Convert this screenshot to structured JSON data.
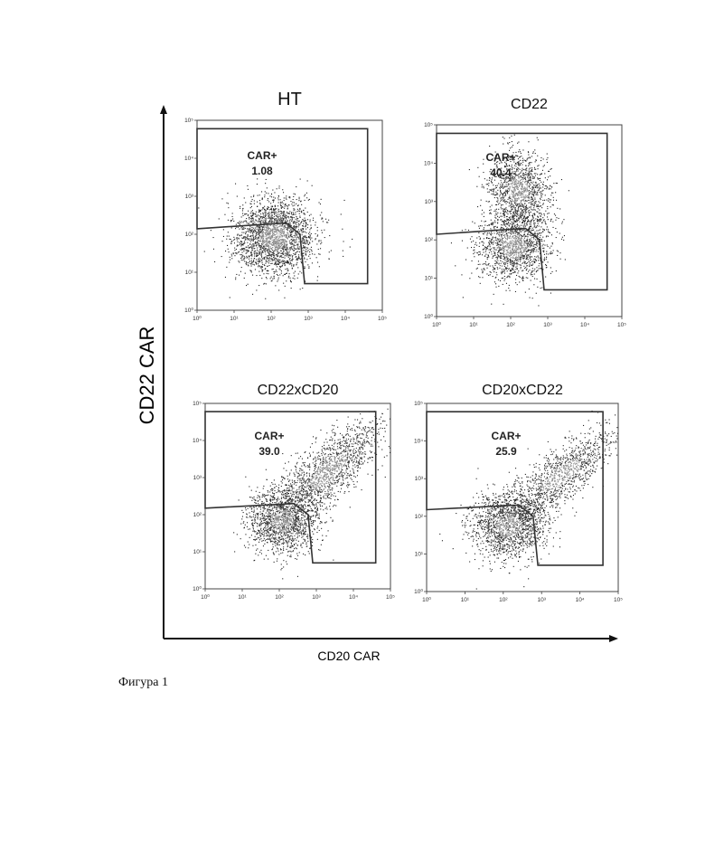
{
  "figure": {
    "caption": "Фигура 1",
    "x_axis_label": "CD20 CAR",
    "y_axis_label": "CD22 CAR"
  },
  "chart_data": [
    {
      "type": "scatter",
      "title": "HT",
      "gate_label": "CAR+",
      "gate_value": "1.08",
      "x_scale": "log",
      "y_scale": "log",
      "xlim": [
        1,
        100000
      ],
      "ylim": [
        1,
        100000
      ],
      "x_ticks": [
        "10⁰",
        "10¹",
        "10²",
        "10³",
        "10⁴",
        "10⁵"
      ],
      "y_ticks": [
        "10⁰",
        "10¹",
        "10²",
        "10³",
        "10⁴",
        "10⁵"
      ],
      "clusters": [
        {
          "x": 120,
          "y": 90,
          "sx": 0.55,
          "sy": 0.5,
          "rot": 0.3,
          "n": 2300
        }
      ],
      "gate_polygon": [
        [
          1,
          140
        ],
        [
          250,
          200
        ],
        [
          600,
          100
        ],
        [
          800,
          5
        ],
        [
          40000,
          5
        ],
        [
          40000,
          60000
        ],
        [
          1,
          60000
        ]
      ]
    },
    {
      "type": "scatter",
      "title": "CD22",
      "gate_label": "CAR+",
      "gate_value": "40.4",
      "x_scale": "log",
      "y_scale": "log",
      "xlim": [
        1,
        100000
      ],
      "ylim": [
        1,
        100000
      ],
      "x_ticks": [
        "10⁰",
        "10¹",
        "10²",
        "10³",
        "10⁴",
        "10⁵"
      ],
      "y_ticks": [
        "10⁰",
        "10¹",
        "10²",
        "10³",
        "10⁴",
        "10⁵"
      ],
      "clusters": [
        {
          "x": 120,
          "y": 70,
          "sx": 0.5,
          "sy": 0.45,
          "rot": 0.2,
          "n": 1500
        },
        {
          "x": 160,
          "y": 2000,
          "sx": 0.4,
          "sy": 0.5,
          "rot": 0.1,
          "n": 1300
        }
      ],
      "gate_polygon": [
        [
          1,
          140
        ],
        [
          250,
          200
        ],
        [
          600,
          100
        ],
        [
          800,
          5
        ],
        [
          40000,
          5
        ],
        [
          40000,
          60000
        ],
        [
          1,
          60000
        ]
      ]
    },
    {
      "type": "scatter",
      "title": "CD22xCD20",
      "gate_label": "CAR+",
      "gate_value": "39.0",
      "x_scale": "log",
      "y_scale": "log",
      "xlim": [
        1,
        100000
      ],
      "ylim": [
        1,
        100000
      ],
      "x_ticks": [
        "10⁰",
        "10¹",
        "10²",
        "10³",
        "10⁴",
        "10⁵"
      ],
      "y_ticks": [
        "10⁰",
        "10¹",
        "10²",
        "10³",
        "10⁴",
        "10⁵"
      ],
      "clusters": [
        {
          "x": 120,
          "y": 70,
          "sx": 0.45,
          "sy": 0.45,
          "rot": 0.3,
          "n": 1500
        },
        {
          "x": 2000,
          "y": 1500,
          "sx": 0.9,
          "sy": 0.35,
          "rot": 0.75,
          "n": 1500
        }
      ],
      "gate_polygon": [
        [
          1,
          150
        ],
        [
          250,
          200
        ],
        [
          600,
          100
        ],
        [
          800,
          5
        ],
        [
          40000,
          5
        ],
        [
          40000,
          60000
        ],
        [
          1,
          60000
        ]
      ]
    },
    {
      "type": "scatter",
      "title": "CD20xCD22",
      "gate_label": "CAR+",
      "gate_value": "25.9",
      "x_scale": "log",
      "y_scale": "log",
      "xlim": [
        1,
        100000
      ],
      "ylim": [
        1,
        100000
      ],
      "x_ticks": [
        "10⁰",
        "10¹",
        "10²",
        "10³",
        "10⁴",
        "10⁵"
      ],
      "y_ticks": [
        "10⁰",
        "10¹",
        "10²",
        "10³",
        "10⁴",
        "10⁵"
      ],
      "clusters": [
        {
          "x": 140,
          "y": 60,
          "sx": 0.5,
          "sy": 0.45,
          "rot": 0.3,
          "n": 1600
        },
        {
          "x": 3000,
          "y": 1200,
          "sx": 0.9,
          "sy": 0.3,
          "rot": 0.7,
          "n": 1200
        }
      ],
      "gate_polygon": [
        [
          1,
          150
        ],
        [
          250,
          200
        ],
        [
          600,
          100
        ],
        [
          800,
          5
        ],
        [
          40000,
          5
        ],
        [
          40000,
          60000
        ],
        [
          1,
          60000
        ]
      ]
    }
  ]
}
